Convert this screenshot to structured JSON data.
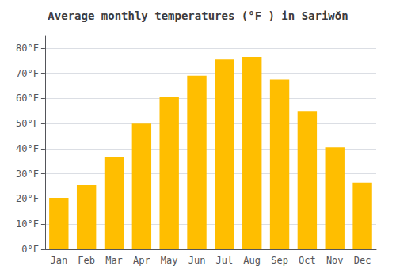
{
  "chart_data": {
    "type": "bar",
    "title": "Average monthly temperatures (°F ) in Sariwŏn",
    "categories": [
      "Jan",
      "Feb",
      "Mar",
      "Apr",
      "May",
      "Jun",
      "Jul",
      "Aug",
      "Sep",
      "Oct",
      "Nov",
      "Dec"
    ],
    "values": [
      20.5,
      25.5,
      36.5,
      50.0,
      60.5,
      69.0,
      75.5,
      76.5,
      67.5,
      55.0,
      40.5,
      26.5
    ],
    "color": "#FFBE00",
    "ylim": [
      0,
      85
    ],
    "yticks": [
      {
        "value": 0,
        "label": "0°F"
      },
      {
        "value": 10,
        "label": "10°F"
      },
      {
        "value": 20,
        "label": "20°F"
      },
      {
        "value": 30,
        "label": "30°F"
      },
      {
        "value": 40,
        "label": "40°F"
      },
      {
        "value": 50,
        "label": "50°F"
      },
      {
        "value": 60,
        "label": "60°F"
      },
      {
        "value": 70,
        "label": "70°F"
      },
      {
        "value": 80,
        "label": "80°F"
      }
    ],
    "grid": true
  }
}
